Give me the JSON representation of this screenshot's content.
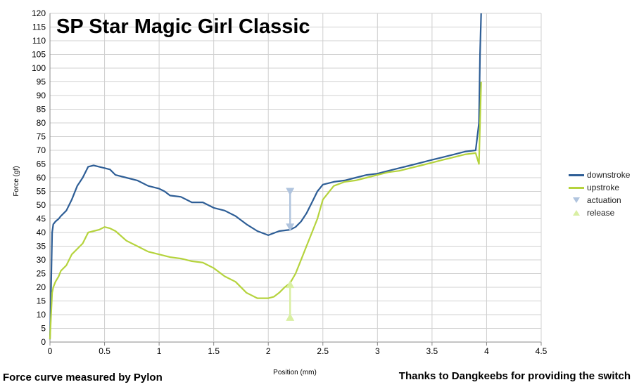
{
  "chart_data": {
    "type": "line",
    "title": "SP Star Magic Girl Classic",
    "xlabel": "Position (mm)",
    "ylabel": "Force (gf)",
    "xlim": [
      0,
      4.5
    ],
    "ylim": [
      0,
      120
    ],
    "xticks": [
      "0",
      "0.5",
      "1",
      "1.5",
      "2",
      "2.5",
      "3",
      "3.5",
      "4",
      "4.5"
    ],
    "yticks": [
      "0",
      "5",
      "10",
      "15",
      "20",
      "25",
      "30",
      "35",
      "40",
      "45",
      "50",
      "55",
      "60",
      "65",
      "70",
      "75",
      "80",
      "85",
      "90",
      "95",
      "100",
      "105",
      "110",
      "115",
      "120"
    ],
    "grid": true,
    "legend_position": "right",
    "series": [
      {
        "name": "downstroke",
        "color": "#2e5e96",
        "x": [
          0.0,
          0.01,
          0.02,
          0.03,
          0.05,
          0.08,
          0.1,
          0.15,
          0.2,
          0.25,
          0.3,
          0.35,
          0.4,
          0.45,
          0.5,
          0.55,
          0.6,
          0.7,
          0.8,
          0.9,
          1.0,
          1.05,
          1.1,
          1.2,
          1.3,
          1.4,
          1.5,
          1.6,
          1.7,
          1.8,
          1.9,
          2.0,
          2.1,
          2.2,
          2.25,
          2.3,
          2.35,
          2.4,
          2.45,
          2.5,
          2.6,
          2.7,
          2.8,
          2.9,
          3.0,
          3.1,
          3.2,
          3.3,
          3.4,
          3.5,
          3.6,
          3.7,
          3.8,
          3.9,
          3.93,
          3.94,
          3.95
        ],
        "y": [
          1,
          20,
          40,
          43,
          44,
          45,
          46,
          48,
          52,
          57,
          60,
          64,
          64.5,
          64,
          63.5,
          63,
          61,
          60,
          59,
          57,
          56,
          55,
          53.5,
          53,
          51,
          51,
          49,
          48,
          46,
          43,
          40.5,
          39,
          40.5,
          41,
          42,
          44,
          47,
          51,
          55,
          57.5,
          58.5,
          59,
          60,
          61,
          61.5,
          62.5,
          63.5,
          64.5,
          65.5,
          66.5,
          67.5,
          68.5,
          69.5,
          70,
          80,
          105,
          120
        ]
      },
      {
        "name": "upstroke",
        "color": "#b5d33d",
        "x": [
          0.0,
          0.01,
          0.02,
          0.03,
          0.05,
          0.08,
          0.1,
          0.15,
          0.2,
          0.25,
          0.3,
          0.35,
          0.4,
          0.45,
          0.5,
          0.55,
          0.6,
          0.7,
          0.8,
          0.9,
          1.0,
          1.1,
          1.2,
          1.3,
          1.4,
          1.5,
          1.6,
          1.7,
          1.8,
          1.9,
          2.0,
          2.05,
          2.1,
          2.15,
          2.2,
          2.25,
          2.3,
          2.35,
          2.4,
          2.45,
          2.5,
          2.6,
          2.7,
          2.8,
          2.9,
          3.0,
          3.1,
          3.2,
          3.3,
          3.4,
          3.5,
          3.6,
          3.7,
          3.8,
          3.9,
          3.93,
          3.94,
          3.95
        ],
        "y": [
          1,
          10,
          18,
          20,
          22,
          24,
          26,
          28,
          32,
          34,
          36,
          40,
          40.5,
          41,
          42,
          41.5,
          40.5,
          37,
          35,
          33,
          32,
          31,
          30.5,
          29.5,
          29,
          27,
          24,
          22,
          18,
          16,
          16,
          16.5,
          18,
          20,
          21.5,
          25,
          30,
          35,
          40,
          45,
          52,
          57,
          58.5,
          59,
          60,
          61,
          62,
          62.5,
          63.5,
          64.5,
          65.5,
          66.5,
          67.5,
          68.5,
          69,
          65,
          80,
          95
        ]
      },
      {
        "name": "actuation",
        "color": "#b0c4de",
        "x": [
          2.2,
          2.2
        ],
        "y": [
          55,
          42
        ]
      },
      {
        "name": "release",
        "color": "#d9efa3",
        "x": [
          2.2,
          2.2
        ],
        "y": [
          9,
          21
        ]
      }
    ]
  },
  "legend": [
    {
      "label": "downstroke",
      "color": "#2e5e96",
      "marker": "line"
    },
    {
      "label": "upstroke",
      "color": "#b5d33d",
      "marker": "line"
    },
    {
      "label": "actuation",
      "color": "#b0c4de",
      "marker": "triangle-down"
    },
    {
      "label": "release",
      "color": "#d9efa3",
      "marker": "triangle-up"
    }
  ],
  "footer": {
    "left": "Force curve measured by Pylon",
    "right": "Thanks to Dangkeebs for providing the switch"
  }
}
